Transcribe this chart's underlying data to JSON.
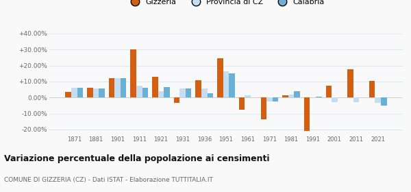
{
  "years": [
    1871,
    1881,
    1901,
    1911,
    1921,
    1931,
    1936,
    1951,
    1961,
    1971,
    1981,
    1991,
    2001,
    2011,
    2021
  ],
  "gizzeria": [
    3.5,
    6.0,
    12.0,
    30.0,
    13.0,
    -3.5,
    11.0,
    24.5,
    -7.5,
    -13.5,
    1.5,
    -21.0,
    7.5,
    17.5,
    10.5
  ],
  "provincia_cz": [
    6.0,
    5.5,
    12.0,
    7.5,
    4.0,
    5.5,
    5.5,
    16.5,
    1.5,
    -2.5,
    2.0,
    0.0,
    -3.0,
    -3.0,
    -3.5
  ],
  "calabria": [
    6.0,
    5.5,
    12.0,
    6.0,
    6.5,
    5.5,
    2.5,
    15.0,
    null,
    -2.5,
    4.0,
    0.5,
    null,
    null,
    -5.0
  ],
  "color_gizzeria": "#d45f10",
  "color_provincia": "#c5ddf0",
  "color_calabria": "#6ab0d4",
  "title": "Variazione percentuale della popolazione ai censimenti",
  "subtitle": "COMUNE DI GIZZERIA (CZ) - Dati ISTAT - Elaborazione TUTTITALIA.IT",
  "ylim": [
    -23,
    43
  ],
  "yticks": [
    -20,
    -10,
    0,
    10,
    20,
    30,
    40
  ],
  "ytick_labels": [
    "-20.00%",
    "-10.00%",
    "0.00%",
    "+10.00%",
    "+20.00%",
    "+30.00%",
    "+40.00%"
  ],
  "bar_width": 0.27,
  "legend_labels": [
    "Gizzeria",
    "Provincia di CZ",
    "Calabria"
  ],
  "background_color": "#f9f9f9",
  "grid_color": "#dce8f0"
}
